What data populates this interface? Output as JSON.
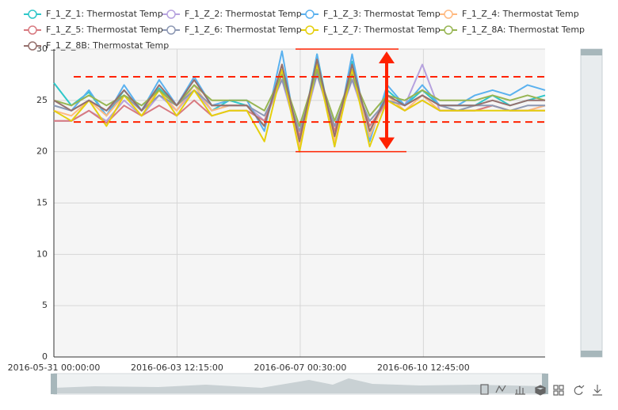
{
  "chart_data": {
    "type": "line",
    "x": [
      "2016-05-31 00:00:00",
      "2016-05-31 12:00:00",
      "2016-06-01 00:00:00",
      "2016-06-01 12:00:00",
      "2016-06-02 00:00:00",
      "2016-06-02 12:00:00",
      "2016-06-03 00:00:00",
      "2016-06-03 12:00:00",
      "2016-06-04 00:00:00",
      "2016-06-04 12:00:00",
      "2016-06-05 00:00:00",
      "2016-06-05 12:00:00",
      "2016-06-06 00:00:00",
      "2016-06-06 12:00:00",
      "2016-06-07 00:00:00",
      "2016-06-07 12:00:00",
      "2016-06-08 00:00:00",
      "2016-06-08 12:00:00",
      "2016-06-09 00:00:00",
      "2016-06-09 12:00:00",
      "2016-06-10 00:00:00",
      "2016-06-10 12:00:00",
      "2016-06-11 00:00:00",
      "2016-06-11 12:00:00",
      "2016-06-12 00:00:00",
      "2016-06-12 12:00:00",
      "2016-06-13 00:00:00",
      "2016-06-13 12:00:00",
      "2016-06-14 00:00:00"
    ],
    "xlim": [
      "2016-05-31 00:00:00",
      "2016-06-14 00:00:00"
    ],
    "xticks": [
      "2016-05-31 00:00:00",
      "2016-06-03 12:15:00",
      "2016-06-07 00:30:00",
      "2016-06-10 12:45:00"
    ],
    "ylim": [
      0,
      30
    ],
    "yticks": [
      0,
      5,
      10,
      15,
      20,
      25,
      30
    ],
    "grid": true,
    "series": [
      {
        "name": "F_1_Z_1: Thermostat Temp",
        "color": "#2ec7c9",
        "values": [
          26.7,
          24.5,
          25.8,
          23.5,
          26,
          24,
          26.2,
          24.5,
          26.5,
          24,
          25,
          24.5,
          22.5,
          28,
          20.5,
          29.5,
          21,
          28.8,
          21.5,
          26,
          24.5,
          26,
          24.5,
          24.5,
          24.5,
          25.5,
          24.5,
          25,
          25.5
        ]
      },
      {
        "name": "F_1_Z_2: Thermostat Temp",
        "color": "#b6a2de",
        "values": [
          23,
          23,
          24,
          23,
          25,
          23.5,
          25.5,
          24,
          26,
          24,
          24.5,
          24.5,
          23,
          27,
          21,
          27.5,
          22,
          27,
          22,
          25,
          24.5,
          28.5,
          24,
          24,
          24,
          24.5,
          24,
          24,
          24.5
        ]
      },
      {
        "name": "F_1_Z_3: Thermostat Temp",
        "color": "#5ab1ef",
        "values": [
          24.5,
          24,
          26,
          23.5,
          26.5,
          24,
          27,
          24.5,
          27.3,
          24.5,
          25,
          25,
          22,
          29.8,
          20,
          29.5,
          20.5,
          29.5,
          21,
          26.5,
          24.5,
          26.5,
          24.5,
          24.5,
          25.5,
          26,
          25.5,
          26.5,
          26
        ]
      },
      {
        "name": "F_1_Z_4: Thermostat Temp",
        "color": "#ffb980",
        "values": [
          24,
          23.5,
          25,
          23.5,
          25.5,
          24,
          26,
          24,
          26.5,
          24,
          24.5,
          24.5,
          22.5,
          28.5,
          20.5,
          29,
          21,
          28.5,
          21.5,
          25.5,
          24,
          25.5,
          24,
          24,
          24,
          24.5,
          24,
          24,
          24.5
        ]
      },
      {
        "name": "F_1_Z_5: Thermostat Temp",
        "color": "#d87a80",
        "values": [
          23,
          23,
          24,
          22.8,
          24.5,
          23.5,
          24.5,
          23.5,
          25,
          23.5,
          24,
          24,
          23,
          27.5,
          21.5,
          27.8,
          22,
          27.5,
          22.5,
          25,
          24,
          25,
          24,
          24,
          24,
          24.5,
          24,
          24,
          24
        ]
      },
      {
        "name": "F_1_Z_6: Thermostat Temp",
        "color": "#8d98b3",
        "values": [
          24.5,
          24,
          25,
          24,
          25.5,
          24,
          25.5,
          24.5,
          26,
          24.5,
          24.5,
          24.5,
          23.5,
          27,
          22,
          27.5,
          22.5,
          27,
          23,
          25,
          24.5,
          25.5,
          24.5,
          24,
          24.5,
          24.5,
          24,
          24.5,
          24.5
        ]
      },
      {
        "name": "F_1_Z_7: Thermostat Temp",
        "color": "#e5cf0d",
        "values": [
          24,
          23,
          25,
          22.5,
          25.5,
          23.5,
          26,
          23.5,
          26,
          23.5,
          24,
          24,
          21,
          28,
          20,
          28.5,
          20.5,
          28,
          20.5,
          25,
          24,
          25,
          24,
          24,
          24,
          24,
          24,
          24,
          24
        ]
      },
      {
        "name": "F_1_Z_8A: Thermostat Temp",
        "color": "#97b552",
        "values": [
          25,
          24.5,
          25.5,
          24.5,
          25.5,
          24.5,
          26,
          24.5,
          26.5,
          25,
          25,
          25,
          24,
          27.5,
          22.5,
          28,
          23,
          27.5,
          23.5,
          25.5,
          25,
          26,
          25,
          25,
          25,
          25.5,
          25,
          25.5,
          25
        ]
      },
      {
        "name": "F_1_Z_8B: Thermostat Temp",
        "color": "#95706d",
        "values": [
          25,
          24,
          25,
          24,
          26,
          24,
          26.5,
          24.5,
          27,
          24.5,
          24.5,
          24.5,
          22.5,
          28.5,
          21,
          29,
          21.5,
          28.5,
          22,
          25.5,
          24.5,
          25.5,
          24.5,
          24.5,
          24.5,
          25,
          24.5,
          25,
          25
        ]
      }
    ],
    "annotations": {
      "color": "#ff2200",
      "dashed_lines": [
        27.3,
        22.9
      ],
      "range": [
        20,
        30
      ]
    }
  }
}
